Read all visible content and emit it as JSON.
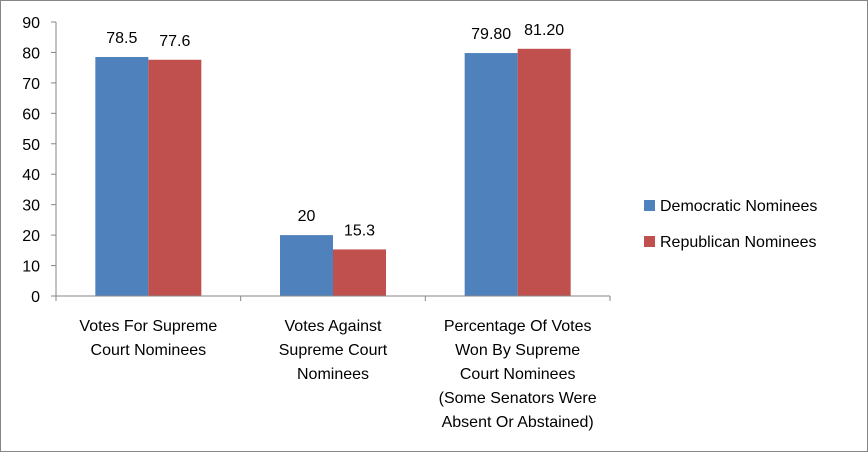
{
  "chart_data": {
    "type": "bar",
    "title": "",
    "xlabel": "",
    "ylabel": "",
    "ylim": [
      0,
      90
    ],
    "yticks": [
      "0",
      "10",
      "20",
      "30",
      "40",
      "50",
      "60",
      "70",
      "80",
      "90"
    ],
    "grid": false,
    "legend_position": "right",
    "categories": [
      [
        "Votes For Supreme",
        "Court Nominees"
      ],
      [
        "Votes Against",
        "Supreme Court",
        "Nominees"
      ],
      [
        "Percentage Of Votes",
        "Won By Supreme",
        "Court Nominees",
        "(Some Senators Were",
        "Absent Or Abstained)"
      ]
    ],
    "series": [
      {
        "name": "Democratic Nominees",
        "color": "#4F81BD",
        "values": [
          78.5,
          20,
          79.8
        ],
        "labels": [
          "78.5",
          "20",
          "79.80"
        ]
      },
      {
        "name": "Republican Nominees",
        "color": "#C0504D",
        "values": [
          77.6,
          15.3,
          81.2
        ],
        "labels": [
          "77.6",
          "15.3",
          "81.20"
        ]
      }
    ]
  }
}
